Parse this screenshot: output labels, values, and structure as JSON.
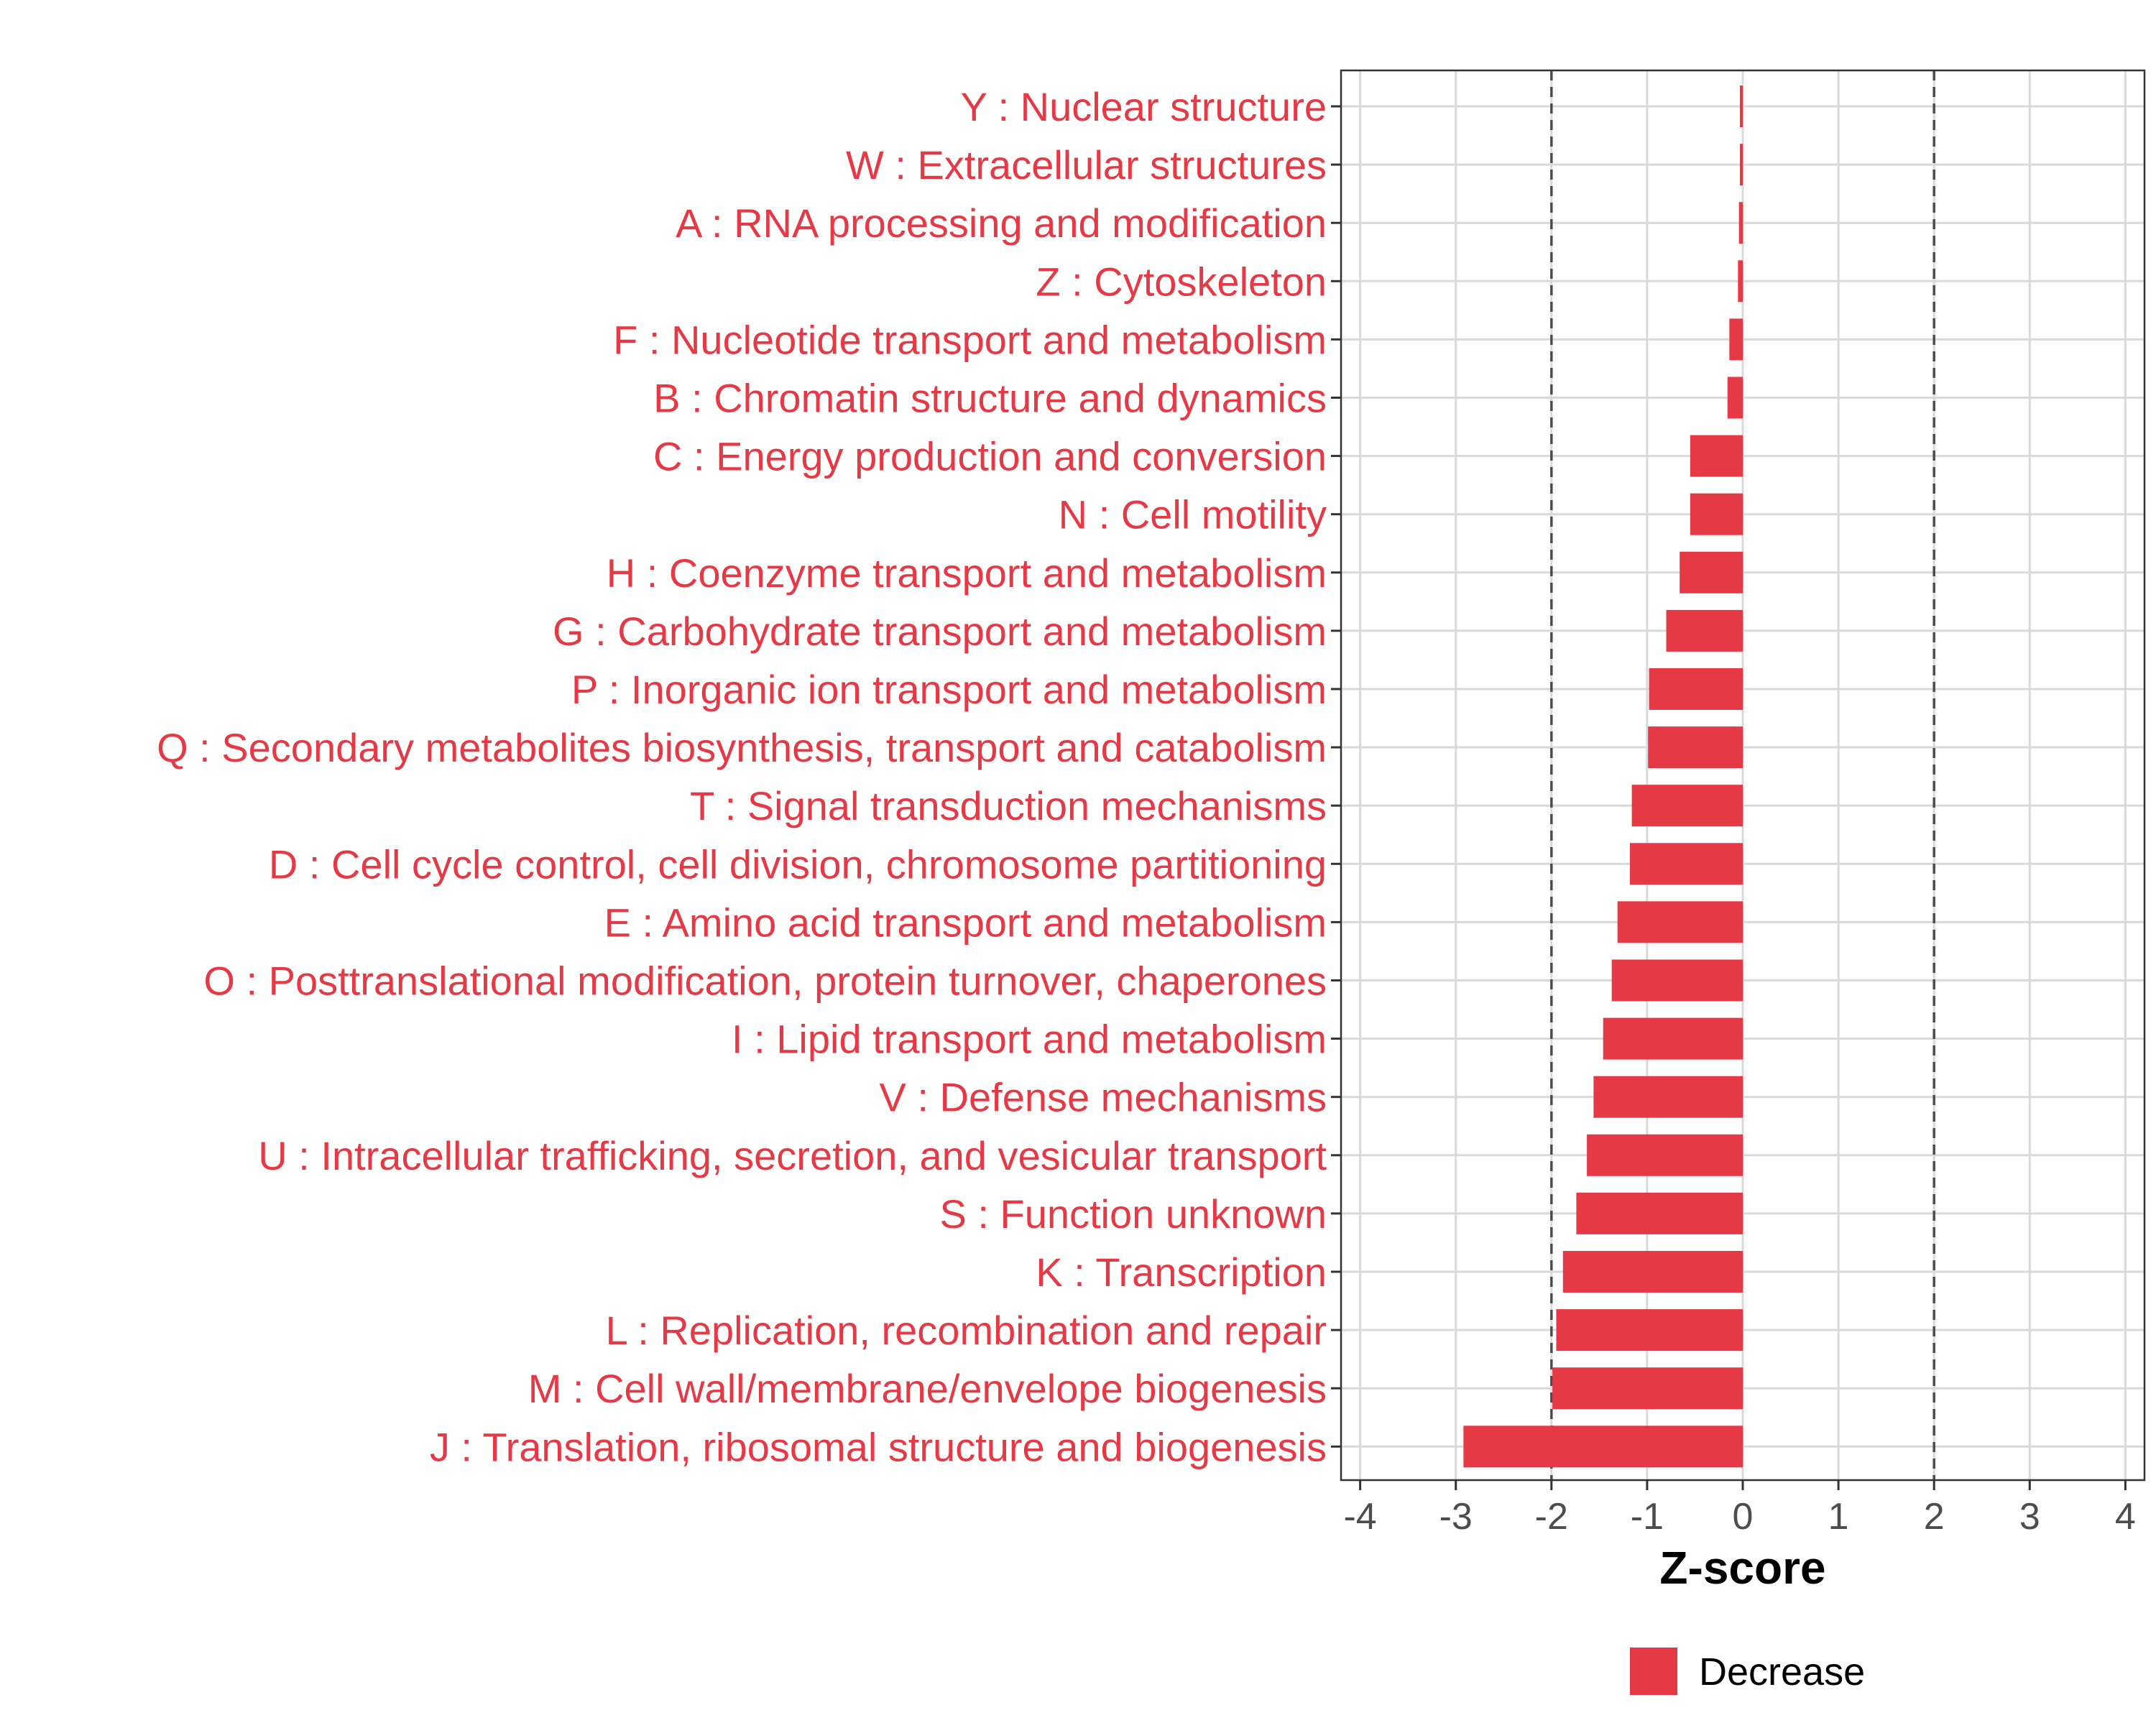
{
  "chart_data": {
    "type": "bar",
    "orientation": "horizontal",
    "title": "",
    "xlabel": "Z-score",
    "ylabel": "",
    "xlim": [
      -4.2,
      4.2
    ],
    "xticks": [
      -4,
      -3,
      -2,
      -1,
      0,
      1,
      2,
      3,
      4
    ],
    "xtick_labels": [
      "-4",
      "-3",
      "-2",
      "-1",
      "0",
      "1",
      "2",
      "3",
      "4"
    ],
    "reference_lines": [
      -2,
      2
    ],
    "grid": true,
    "legend": {
      "placement": "bottom",
      "entries": [
        {
          "name": "Decrease",
          "color": "#E63946"
        }
      ]
    },
    "colors": {
      "decrease": "#E63946",
      "label": "#E63946",
      "grid": "#D9D9D9",
      "reference": "#4D4D4D"
    },
    "categories": [
      "Y : Nuclear structure",
      "W : Extracellular structures",
      "A : RNA processing and modification",
      "Z : Cytoskeleton",
      "F : Nucleotide transport and metabolism",
      "B : Chromatin structure and dynamics",
      "C : Energy production and conversion",
      "N : Cell motility",
      "H : Coenzyme transport and metabolism",
      "G : Carbohydrate transport and metabolism",
      "P : Inorganic ion transport and metabolism",
      "Q : Secondary metabolites biosynthesis, transport and catabolism",
      "T : Signal transduction mechanisms",
      "D : Cell cycle control, cell division, chromosome partitioning",
      "E : Amino acid transport and metabolism",
      "O : Posttranslational modification, protein turnover, chaperones",
      "I : Lipid transport and metabolism",
      "V : Defense mechanisms",
      "U : Intracellular trafficking, secretion, and vesicular transport",
      "S : Function unknown",
      "K : Transcription",
      "L : Replication, recombination and repair",
      "M : Cell wall/membrane/envelope biogenesis",
      "J : Translation, ribosomal structure and biogenesis"
    ],
    "values": [
      -0.03,
      -0.03,
      -0.04,
      -0.05,
      -0.14,
      -0.16,
      -0.55,
      -0.55,
      -0.66,
      -0.8,
      -0.98,
      -0.99,
      -1.16,
      -1.18,
      -1.31,
      -1.37,
      -1.46,
      -1.56,
      -1.63,
      -1.74,
      -1.88,
      -1.95,
      -1.99,
      -2.92
    ]
  }
}
